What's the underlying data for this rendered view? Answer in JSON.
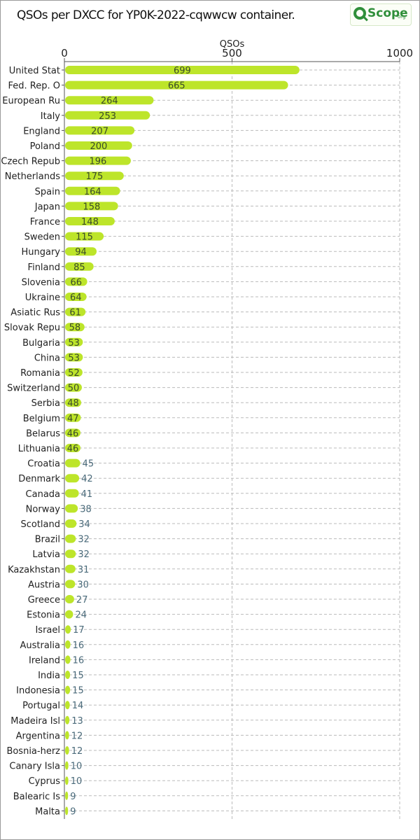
{
  "header": {
    "title": "QSOs per DXCC for YP0K-2022-cqwwcw container.",
    "logo_text": "Scope",
    "logo_suffix": "org"
  },
  "chart_data": {
    "type": "bar",
    "orientation": "horizontal",
    "title": "QSOs per DXCC for YP0K-2022-cqwwcw container.",
    "xlabel": "QSOs",
    "ylabel": "",
    "xlim": [
      0,
      1000
    ],
    "xticks": [
      0,
      500,
      1000
    ],
    "xtick_labels": [
      "0",
      "500",
      "1000"
    ],
    "axis_position": "top",
    "grid": true,
    "bar_color": "#bde52a",
    "label_inside_color": "#3a4a2a",
    "label_outside_color": "#4a6a7a",
    "categories": [
      "United Stat",
      "Fed. Rep. O",
      "European Ru",
      "Italy",
      "England",
      "Poland",
      "Czech Repub",
      "Netherlands",
      "Spain",
      "Japan",
      "France",
      "Sweden",
      "Hungary",
      "Finland",
      "Slovenia",
      "Ukraine",
      "Asiatic Rus",
      "Slovak Repu",
      "Bulgaria",
      "China",
      "Romania",
      "Switzerland",
      "Serbia",
      "Belgium",
      "Belarus",
      "Lithuania",
      "Croatia",
      "Denmark",
      "Canada",
      "Norway",
      "Scotland",
      "Brazil",
      "Latvia",
      "Kazakhstan",
      "Austria",
      "Greece",
      "Estonia",
      "Israel",
      "Australia",
      "Ireland",
      "India",
      "Indonesia",
      "Portugal",
      "Madeira Isl",
      "Argentina",
      "Bosnia-herz",
      "Canary Isla",
      "Cyprus",
      "Balearic Is",
      "Malta"
    ],
    "values": [
      699,
      665,
      264,
      253,
      207,
      200,
      196,
      175,
      164,
      158,
      148,
      115,
      94,
      85,
      66,
      64,
      61,
      58,
      53,
      53,
      52,
      50,
      48,
      47,
      46,
      46,
      45,
      42,
      41,
      38,
      34,
      32,
      32,
      31,
      30,
      27,
      24,
      17,
      16,
      16,
      15,
      15,
      14,
      13,
      12,
      12,
      10,
      10,
      9,
      9
    ],
    "value_labels": [
      "699",
      "665",
      "264",
      "253",
      "207",
      "200",
      "196",
      "175",
      "164",
      "158",
      "148",
      "115",
      "94",
      "85",
      "66",
      "64",
      "61",
      "58",
      "53",
      "53",
      "52",
      "50",
      "48",
      "47",
      "46",
      "46",
      "45",
      "42",
      "41",
      "38",
      "34",
      "32",
      "32",
      "31",
      "30",
      "27",
      "24",
      "17",
      "16",
      "16",
      "15",
      "15",
      "14",
      "13",
      "12",
      "12",
      "10",
      "10",
      "9",
      "9"
    ]
  }
}
